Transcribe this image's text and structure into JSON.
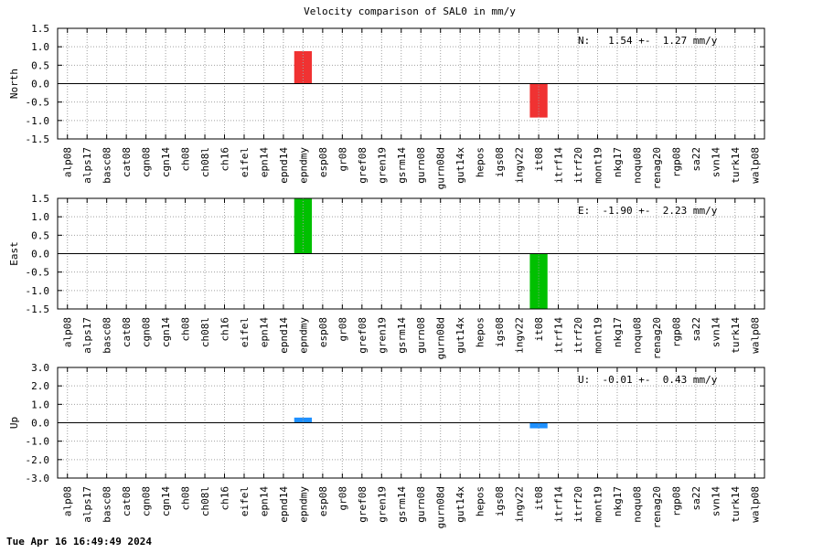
{
  "title": "Velocity comparison of SAL0 in mm/y",
  "footer": "Tue Apr 16 16:49:49 2024",
  "colors": {
    "north": "#f03232",
    "east": "#00c000",
    "up": "#1e90ff",
    "grid": "#a0a0a0",
    "axis": "#000000"
  },
  "chart_data": [
    {
      "type": "bar",
      "ylabel": "North",
      "ylim": [
        -1.5,
        1.5
      ],
      "yticks": [
        "-1.5",
        "-1.0",
        "-0.5",
        "0.0",
        "0.5",
        "1.0",
        "1.5"
      ],
      "categories": [
        "alp08",
        "alps17",
        "basc08",
        "cat08",
        "cgn08",
        "cgn14",
        "ch08",
        "ch08l",
        "ch16",
        "eifel",
        "epn14",
        "epnd14",
        "epndmy",
        "esp08",
        "gr08",
        "gref08",
        "gren19",
        "gsrm14",
        "gurn08",
        "gurn08d",
        "gut14x",
        "hepos",
        "igs08",
        "ingv22",
        "it08",
        "itrf14",
        "itrf20",
        "mont19",
        "nkg17",
        "noqu08",
        "renag20",
        "rgp08",
        "sa22",
        "svn14",
        "turk14",
        "walp08"
      ],
      "values": [
        0,
        0,
        0,
        0,
        0,
        0,
        0,
        0,
        0,
        0,
        0,
        0,
        0.88,
        0,
        0,
        0,
        0,
        0,
        0,
        0,
        0,
        0,
        0,
        0,
        -0.92,
        0,
        0,
        0,
        0,
        0,
        0,
        0,
        0,
        0,
        0,
        0
      ],
      "annotation": "N:   1.54 +-  1.27 mm/y",
      "grid": true,
      "color_key": "north"
    },
    {
      "type": "bar",
      "ylabel": "East",
      "ylim": [
        -1.5,
        1.5
      ],
      "yticks": [
        "-1.5",
        "-1.0",
        "-0.5",
        "0.0",
        "0.5",
        "1.0",
        "1.5"
      ],
      "categories": [
        "alp08",
        "alps17",
        "basc08",
        "cat08",
        "cgn08",
        "cgn14",
        "ch08",
        "ch08l",
        "ch16",
        "eifel",
        "epn14",
        "epnd14",
        "epndmy",
        "esp08",
        "gr08",
        "gref08",
        "gren19",
        "gsrm14",
        "gurn08",
        "gurn08d",
        "gut14x",
        "hepos",
        "igs08",
        "ingv22",
        "it08",
        "itrf14",
        "itrf20",
        "mont19",
        "nkg17",
        "noqu08",
        "renag20",
        "rgp08",
        "sa22",
        "svn14",
        "turk14",
        "walp08"
      ],
      "values": [
        0,
        0,
        0,
        0,
        0,
        0,
        0,
        0,
        0,
        0,
        0,
        0,
        1.5,
        0,
        0,
        0,
        0,
        0,
        0,
        0,
        0,
        0,
        0,
        0,
        -1.5,
        0,
        0,
        0,
        0,
        0,
        0,
        0,
        0,
        0,
        0,
        0
      ],
      "annotation": "E:  -1.90 +-  2.23 mm/y",
      "grid": true,
      "color_key": "east"
    },
    {
      "type": "bar",
      "ylabel": "Up",
      "ylim": [
        -3.0,
        3.0
      ],
      "yticks": [
        "-3.0",
        "-2.0",
        "-1.0",
        "0.0",
        "1.0",
        "2.0",
        "3.0"
      ],
      "categories": [
        "alp08",
        "alps17",
        "basc08",
        "cat08",
        "cgn08",
        "cgn14",
        "ch08",
        "ch08l",
        "ch16",
        "eifel",
        "epn14",
        "epnd14",
        "epndmy",
        "esp08",
        "gr08",
        "gref08",
        "gren19",
        "gsrm14",
        "gurn08",
        "gurn08d",
        "gut14x",
        "hepos",
        "igs08",
        "ingv22",
        "it08",
        "itrf14",
        "itrf20",
        "mont19",
        "nkg17",
        "noqu08",
        "renag20",
        "rgp08",
        "sa22",
        "svn14",
        "turk14",
        "walp08"
      ],
      "values": [
        0,
        0,
        0,
        0,
        0,
        0,
        0,
        0,
        0,
        0,
        0,
        0,
        0.28,
        0,
        0,
        0,
        0,
        0,
        0,
        0,
        0,
        0,
        0,
        0,
        -0.3,
        0,
        0,
        0,
        0,
        0,
        0,
        0,
        0,
        0,
        0,
        0
      ],
      "annotation": "U:  -0.01 +-  0.43 mm/y",
      "grid": true,
      "color_key": "up"
    }
  ]
}
